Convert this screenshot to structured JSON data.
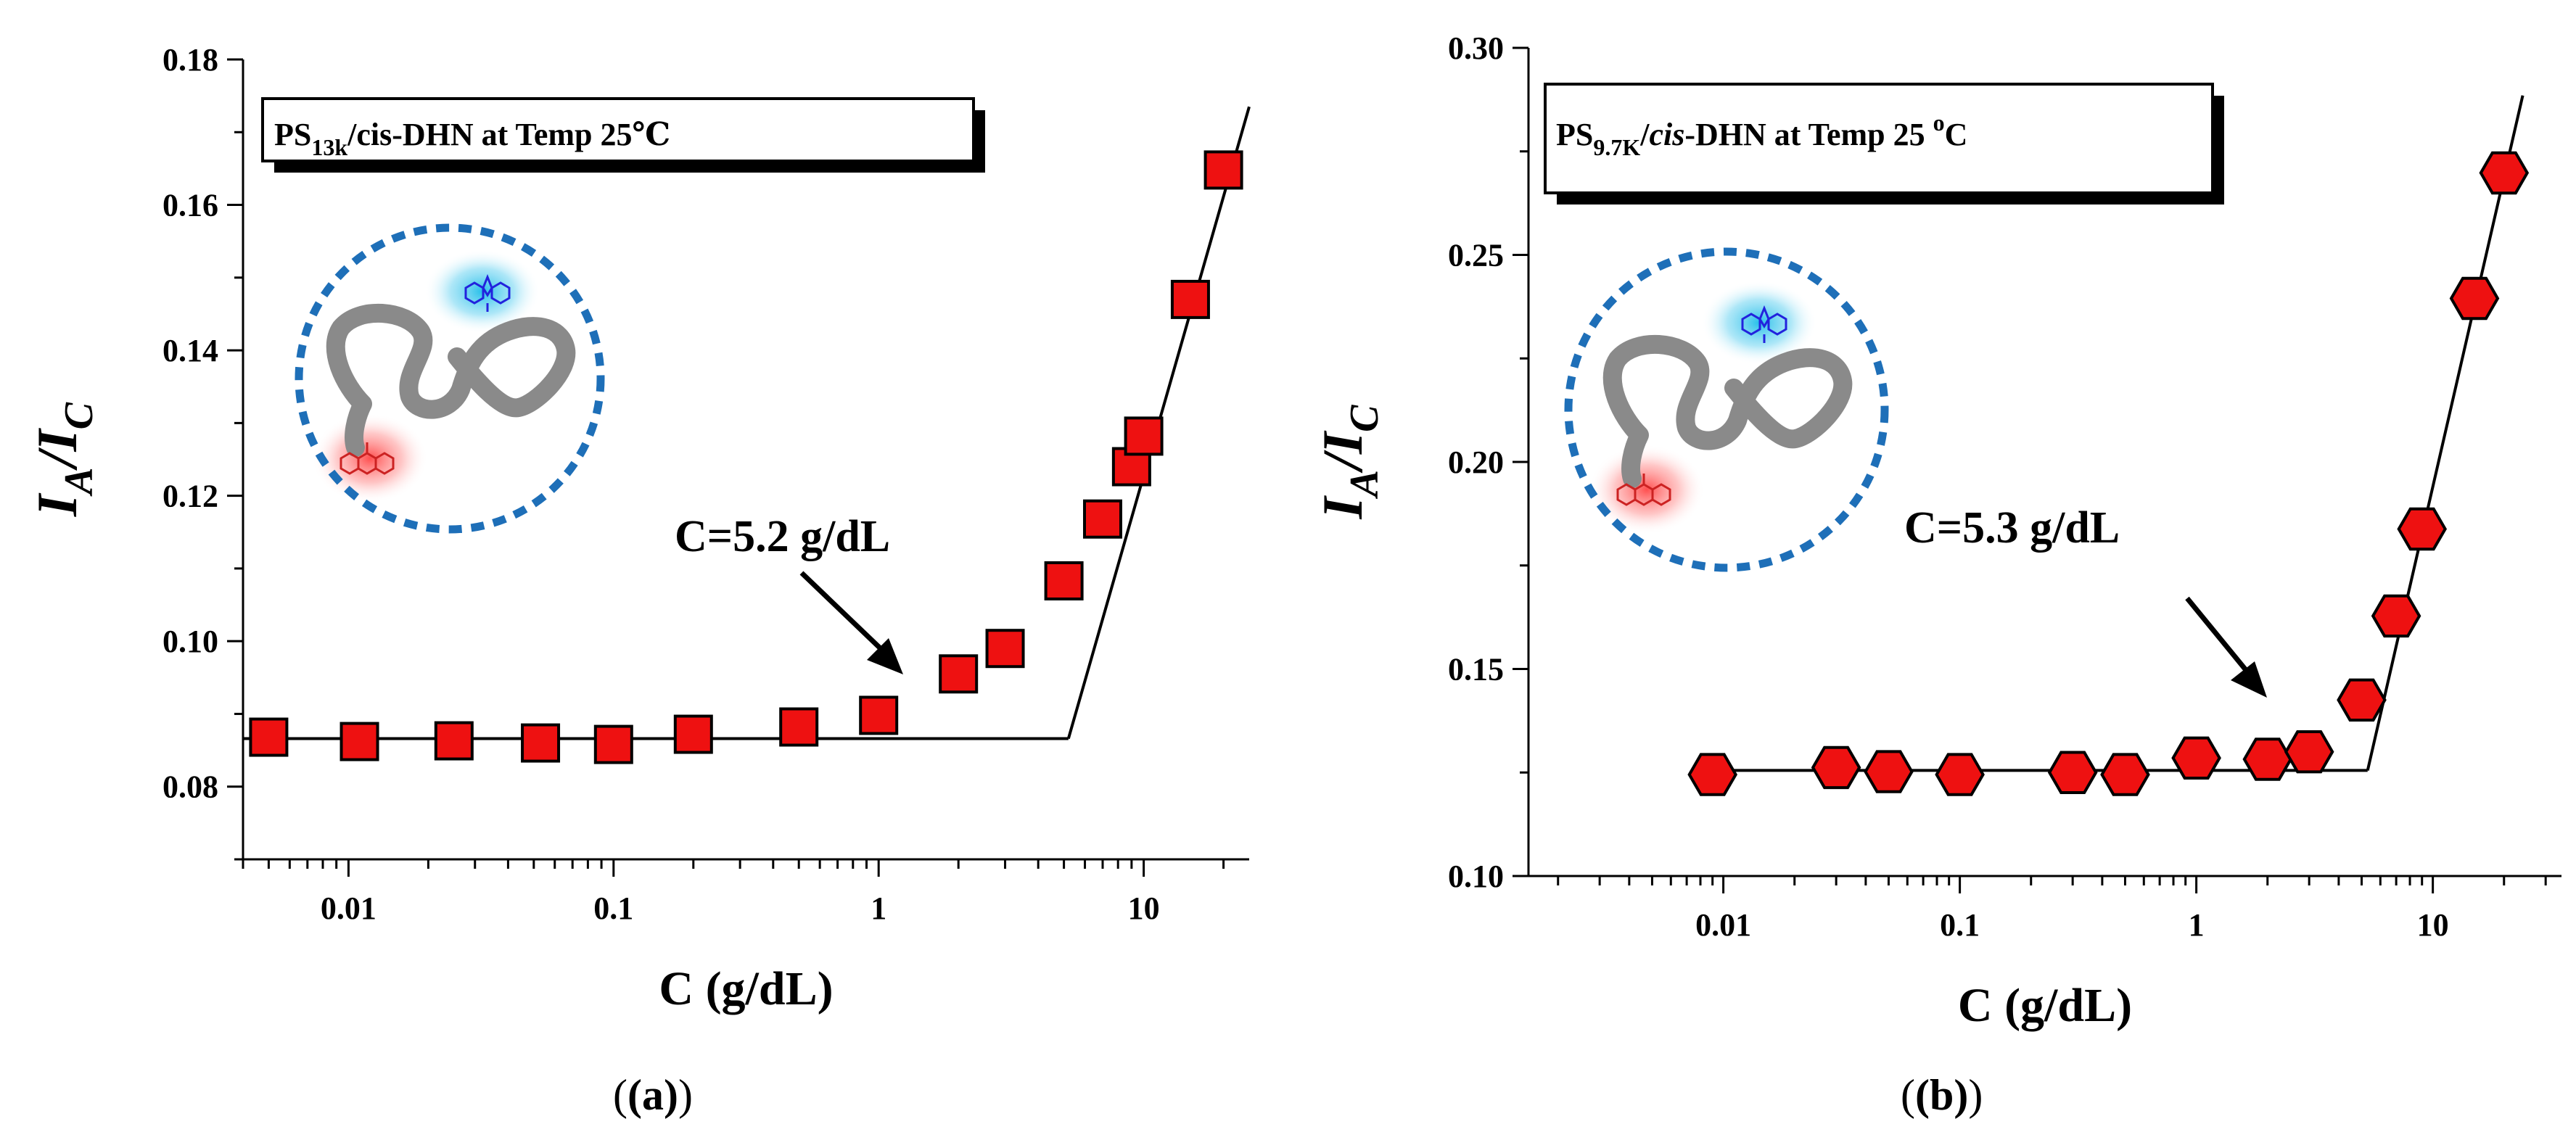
{
  "chart_data": [
    {
      "type": "scatter",
      "panel_label": "(a)",
      "legend": {
        "main": "PS",
        "sub": "13k",
        "rest": "/cis-DHN at Temp 25℃"
      },
      "xlabel": "C (g/dL)",
      "ylabel": {
        "main": "I",
        "sub1": "A",
        "slash": "/I",
        "sub2": "C"
      },
      "x_scale": "log",
      "xlim": [
        0.004,
        25
      ],
      "ylim": [
        0.07,
        0.18
      ],
      "x_ticks": [
        {
          "value": 0.01,
          "label": "0.01"
        },
        {
          "value": 0.1,
          "label": "0.1"
        },
        {
          "value": 1,
          "label": "1"
        },
        {
          "value": 10,
          "label": "10"
        }
      ],
      "y_ticks": [
        {
          "value": 0.08,
          "label": "0.08"
        },
        {
          "value": 0.1,
          "label": "0.10"
        },
        {
          "value": 0.12,
          "label": "0.12"
        },
        {
          "value": 0.14,
          "label": "0.14"
        },
        {
          "value": 0.16,
          "label": "0.16"
        },
        {
          "value": 0.18,
          "label": "0.18"
        }
      ],
      "marker": "square",
      "marker_color": "#ee1111",
      "points": [
        {
          "x": 0.005,
          "y": 0.0868
        },
        {
          "x": 0.011,
          "y": 0.0862
        },
        {
          "x": 0.025,
          "y": 0.0863
        },
        {
          "x": 0.053,
          "y": 0.086
        },
        {
          "x": 0.1,
          "y": 0.0858
        },
        {
          "x": 0.2,
          "y": 0.0872
        },
        {
          "x": 0.5,
          "y": 0.0882
        },
        {
          "x": 1.0,
          "y": 0.0898
        },
        {
          "x": 2.0,
          "y": 0.0955
        },
        {
          "x": 3.0,
          "y": 0.099
        },
        {
          "x": 5.0,
          "y": 0.1083
        },
        {
          "x": 7.0,
          "y": 0.1168
        },
        {
          "x": 9.0,
          "y": 0.124
        },
        {
          "x": 10.0,
          "y": 0.1282
        },
        {
          "x": 15.0,
          "y": 0.147
        },
        {
          "x": 20.0,
          "y": 0.1648
        }
      ],
      "fit_lines": [
        {
          "x": [
            0.004,
            5.2
          ],
          "y": [
            0.0866,
            0.0866
          ]
        },
        {
          "x": [
            5.2,
            25
          ],
          "y": [
            0.0866,
            0.1735
          ]
        }
      ],
      "annotation": {
        "text": "C=5.2 g/dL",
        "arrow_to": {
          "x": 2.2,
          "y": 0.0975
        }
      }
    },
    {
      "type": "scatter",
      "panel_label": "(b)",
      "legend": {
        "main": "PS",
        "sub": "9.7K",
        "rest1": "/",
        "italic": "cis",
        "rest2": "-DHN at Temp 25 ",
        "sup": "o",
        "rest3": "C"
      },
      "xlabel": "C (g/dL)",
      "ylabel": {
        "main": "I",
        "sub1": "A",
        "slash": "/I",
        "sub2": "C"
      },
      "x_scale": "log",
      "xlim": [
        0.0015,
        35
      ],
      "ylim": [
        0.1,
        0.3
      ],
      "x_ticks": [
        {
          "value": 0.01,
          "label": "0.01"
        },
        {
          "value": 0.1,
          "label": "0.1"
        },
        {
          "value": 1,
          "label": "1"
        },
        {
          "value": 10,
          "label": "10"
        }
      ],
      "y_ticks": [
        {
          "value": 0.1,
          "label": "0.10"
        },
        {
          "value": 0.15,
          "label": "0.15"
        },
        {
          "value": 0.2,
          "label": "0.20"
        },
        {
          "value": 0.25,
          "label": "0.25"
        },
        {
          "value": 0.3,
          "label": "0.30"
        }
      ],
      "marker": "hexagon",
      "marker_color": "#ee1111",
      "points": [
        {
          "x": 0.009,
          "y": 0.1245
        },
        {
          "x": 0.03,
          "y": 0.1262
        },
        {
          "x": 0.05,
          "y": 0.1252
        },
        {
          "x": 0.1,
          "y": 0.1245
        },
        {
          "x": 0.3,
          "y": 0.125
        },
        {
          "x": 0.5,
          "y": 0.1245
        },
        {
          "x": 1.0,
          "y": 0.1285
        },
        {
          "x": 2.0,
          "y": 0.1282
        },
        {
          "x": 3.0,
          "y": 0.13
        },
        {
          "x": 5.0,
          "y": 0.1425
        },
        {
          "x": 7.0,
          "y": 0.1628
        },
        {
          "x": 9.0,
          "y": 0.1838
        },
        {
          "x": 15.0,
          "y": 0.2395
        },
        {
          "x": 20.0,
          "y": 0.2698
        }
      ],
      "fit_lines": [
        {
          "x": [
            0.009,
            5.3
          ],
          "y": [
            0.1255,
            0.1255
          ]
        },
        {
          "x": [
            5.3,
            24
          ],
          "y": [
            0.1255,
            0.2885
          ]
        }
      ],
      "annotation": {
        "text": "C=5.3 g/dL",
        "arrow_to": {
          "x": 2.6,
          "y": 0.1355
        }
      }
    }
  ]
}
